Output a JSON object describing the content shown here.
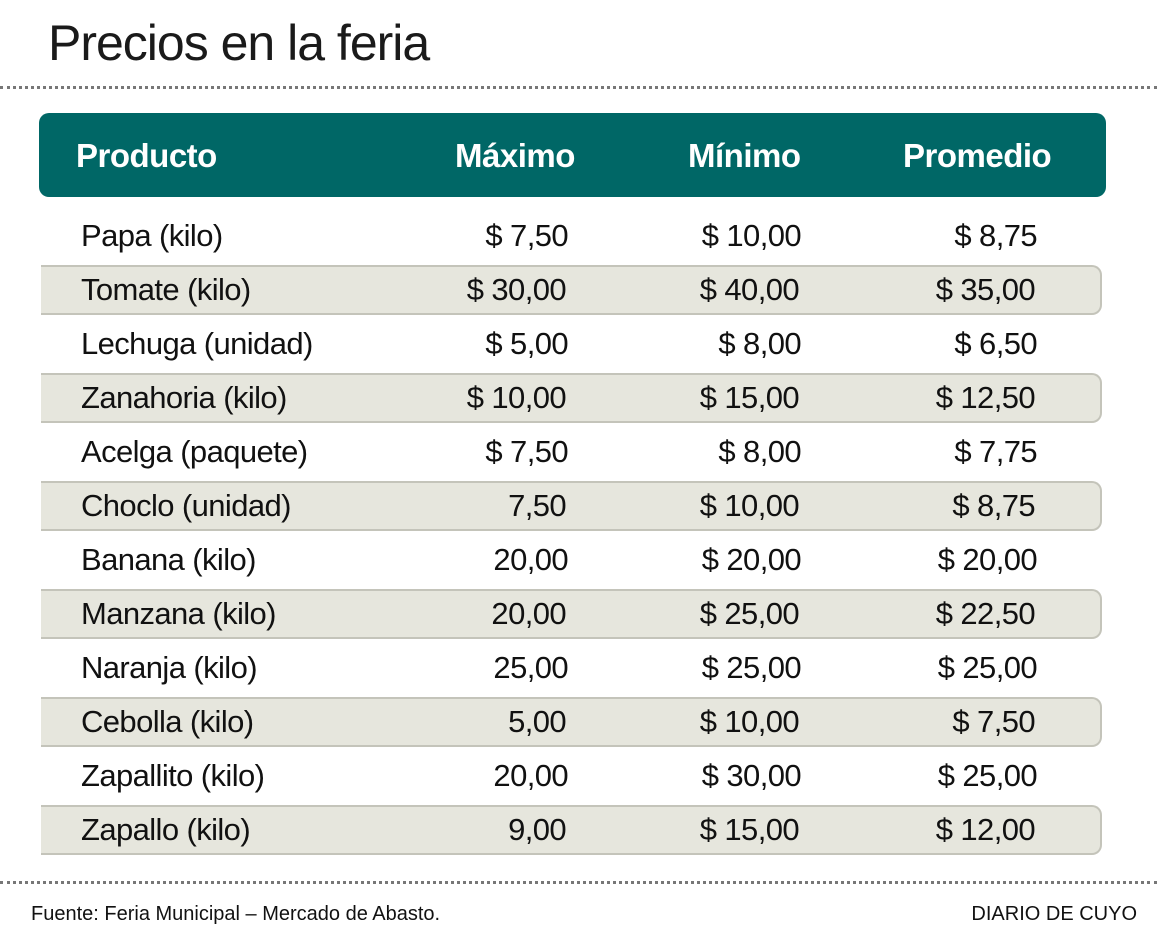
{
  "title": "Precios en la feria",
  "colors": {
    "header_bg": "#006766",
    "stripe_bg": "#e6e6dd"
  },
  "chart_data": {
    "type": "table",
    "title": "Precios en la feria",
    "columns": [
      "Producto",
      "Máximo",
      "Mínimo",
      "Promedio"
    ],
    "rows": [
      [
        "Papa (kilo)",
        "$ 7,50",
        "$ 10,00",
        "$ 8,75"
      ],
      [
        "Tomate (kilo)",
        "$ 30,00",
        "$ 40,00",
        "$ 35,00"
      ],
      [
        "Lechuga (unidad)",
        "$ 5,00",
        "$ 8,00",
        "$ 6,50"
      ],
      [
        "Zanahoria (kilo)",
        "$ 10,00",
        "$ 15,00",
        "$ 12,50"
      ],
      [
        "Acelga (paquete)",
        "$ 7,50",
        "$ 8,00",
        "$ 7,75"
      ],
      [
        "Choclo (unidad)",
        "7,50",
        "$ 10,00",
        "$ 8,75"
      ],
      [
        "Banana (kilo)",
        "20,00",
        "$ 20,00",
        "$ 20,00"
      ],
      [
        "Manzana (kilo)",
        "20,00",
        "$ 25,00",
        "$ 22,50"
      ],
      [
        "Naranja (kilo)",
        "25,00",
        "$ 25,00",
        "$ 25,00"
      ],
      [
        "Cebolla (kilo)",
        "5,00",
        "$ 10,00",
        "$ 7,50"
      ],
      [
        "Zapallito (kilo)",
        "20,00",
        "$ 30,00",
        "$ 25,00"
      ],
      [
        "Zapallo (kilo)",
        "9,00",
        "$ 15,00",
        "$ 12,00"
      ]
    ]
  },
  "footer": {
    "source": "Fuente: Feria Municipal – Mercado de Abasto.",
    "brand": "DIARIO DE CUYO"
  }
}
